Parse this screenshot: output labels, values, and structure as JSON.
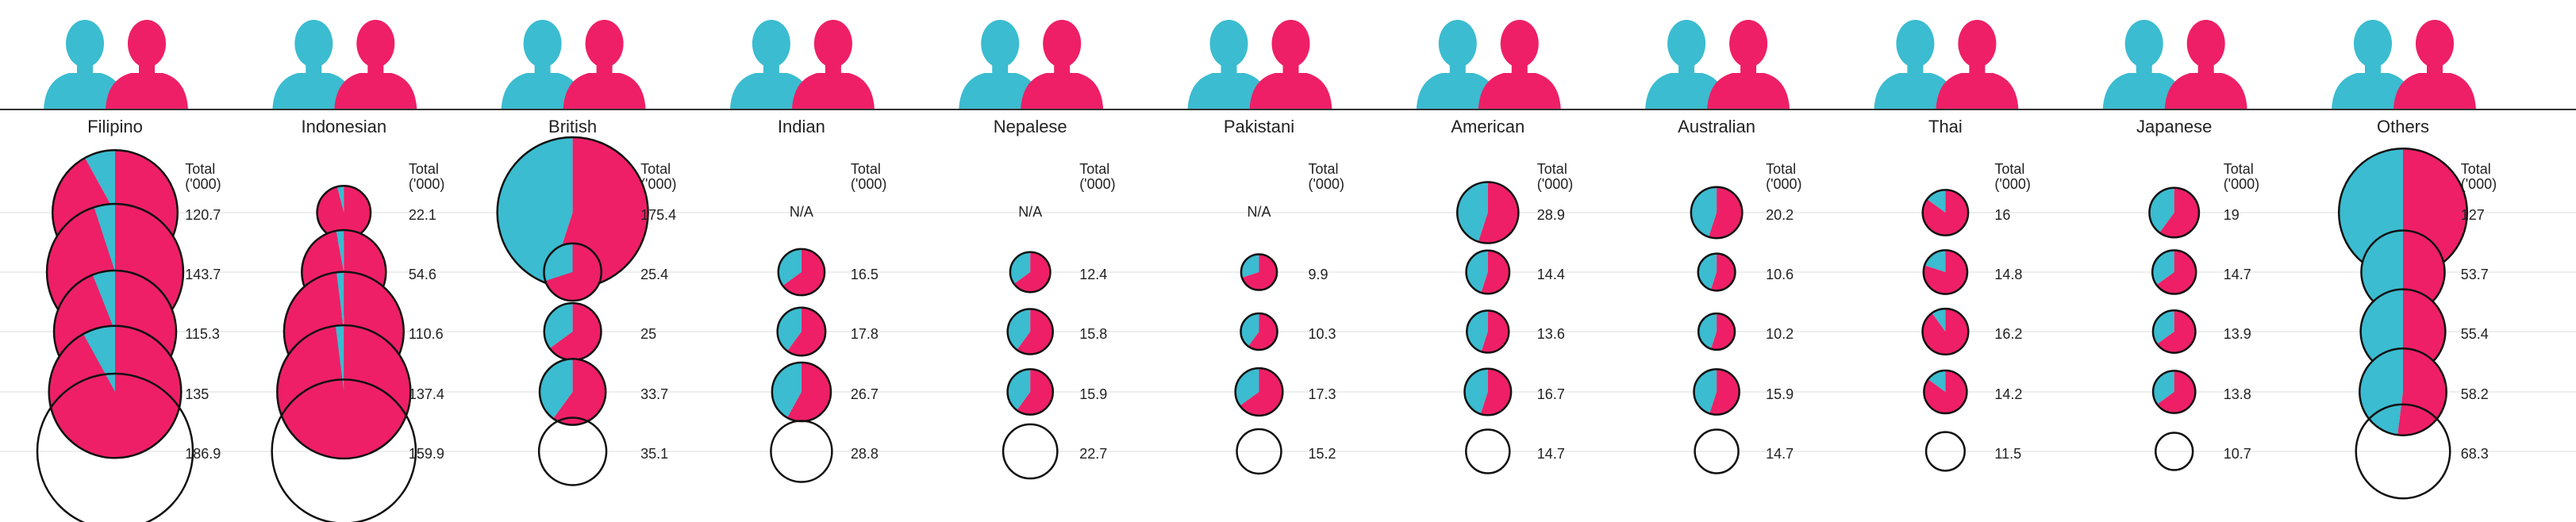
{
  "chart_data": {
    "type": "pie-grid",
    "colors": [
      "#3bbcd0",
      "#ee1f66"
    ],
    "total_label": [
      "Total",
      "('000)"
    ],
    "columns": [
      {
        "name": "Filipino",
        "pies": [
          {
            "total": 120.7,
            "split": [
              8,
              92
            ]
          },
          {
            "total": 143.7,
            "split": [
              5,
              95
            ]
          },
          {
            "total": 115.3,
            "split": [
              6,
              94
            ]
          },
          {
            "total": 135,
            "split": [
              8,
              92
            ]
          },
          {
            "total": 186.9
          }
        ]
      },
      {
        "name": "Indonesian",
        "pies": [
          {
            "total": 22.1,
            "split": [
              4,
              96
            ]
          },
          {
            "total": 54.6,
            "split": [
              3,
              97
            ]
          },
          {
            "total": 110.6,
            "split": [
              2,
              98
            ]
          },
          {
            "total": 137.4,
            "split": [
              2,
              98
            ]
          },
          {
            "total": 159.9
          }
        ]
      },
      {
        "name": "British",
        "pies": [
          {
            "total": 175.4,
            "split": [
              45,
              55
            ]
          },
          {
            "total": 25.4,
            "split": [
              30,
              70
            ]
          },
          {
            "total": 25,
            "split": [
              35,
              65
            ]
          },
          {
            "total": 33.7,
            "split": [
              40,
              60
            ]
          },
          {
            "total": 35.1
          }
        ]
      },
      {
        "name": "Indian",
        "pies": [
          {
            "label": "N/A"
          },
          {
            "total": 16.5,
            "split": [
              35,
              65
            ]
          },
          {
            "total": 17.8,
            "split": [
              40,
              60
            ]
          },
          {
            "total": 26.7,
            "split": [
              42,
              58
            ]
          },
          {
            "total": 28.8
          }
        ]
      },
      {
        "name": "Nepalese",
        "pies": [
          {
            "label": "N/A"
          },
          {
            "total": 12.4,
            "split": [
              35,
              65
            ]
          },
          {
            "total": 15.8,
            "split": [
              40,
              60
            ]
          },
          {
            "total": 15.9,
            "split": [
              40,
              60
            ]
          },
          {
            "total": 22.7
          }
        ]
      },
      {
        "name": "Pakistani",
        "pies": [
          {
            "label": "N/A"
          },
          {
            "total": 9.9,
            "split": [
              30,
              70
            ]
          },
          {
            "total": 10.3,
            "split": [
              40,
              60
            ]
          },
          {
            "total": 17.3,
            "split": [
              35,
              65
            ]
          },
          {
            "total": 15.2
          }
        ]
      },
      {
        "name": "American",
        "pies": [
          {
            "total": 28.9,
            "split": [
              45,
              55
            ]
          },
          {
            "total": 14.4,
            "split": [
              45,
              55
            ]
          },
          {
            "total": 13.6,
            "split": [
              45,
              55
            ]
          },
          {
            "total": 16.7,
            "split": [
              45,
              55
            ]
          },
          {
            "total": 14.7
          }
        ]
      },
      {
        "name": "Australian",
        "pies": [
          {
            "total": 20.2,
            "split": [
              45,
              55
            ]
          },
          {
            "total": 10.6,
            "split": [
              45,
              55
            ]
          },
          {
            "total": 10.2,
            "split": [
              45,
              55
            ]
          },
          {
            "total": 15.9,
            "split": [
              45,
              55
            ]
          },
          {
            "total": 14.7
          }
        ]
      },
      {
        "name": "Thai",
        "pies": [
          {
            "total": 16,
            "split": [
              15,
              85
            ]
          },
          {
            "total": 14.8,
            "split": [
              20,
              80
            ]
          },
          {
            "total": 16.2,
            "split": [
              10,
              90
            ]
          },
          {
            "total": 14.2,
            "split": [
              15,
              85
            ]
          },
          {
            "total": 11.5
          }
        ]
      },
      {
        "name": "Japanese",
        "pies": [
          {
            "total": 19,
            "split": [
              40,
              60
            ]
          },
          {
            "total": 14.7,
            "split": [
              35,
              65
            ]
          },
          {
            "total": 13.9,
            "split": [
              35,
              65
            ]
          },
          {
            "total": 13.8,
            "split": [
              35,
              65
            ]
          },
          {
            "total": 10.7
          }
        ]
      },
      {
        "name": "Others",
        "pies": [
          {
            "total": 127,
            "split": [
              50,
              50
            ]
          },
          {
            "total": 53.7,
            "split": [
              50,
              50
            ]
          },
          {
            "total": 55.4,
            "split": [
              50,
              50
            ]
          },
          {
            "total": 58.2,
            "split": [
              48,
              52
            ]
          },
          {
            "total": 68.3
          }
        ]
      }
    ]
  }
}
